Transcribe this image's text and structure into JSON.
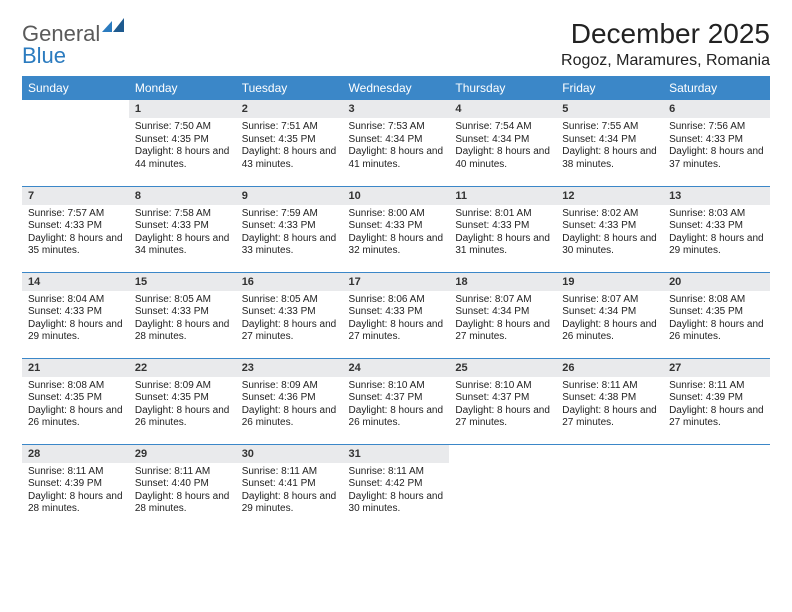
{
  "logo": {
    "part1": "General",
    "part2": "Blue"
  },
  "title": "December 2025",
  "location": "Rogoz, Maramures, Romania",
  "colors": {
    "header_bg": "#3b87c8",
    "header_text": "#ffffff",
    "daynum_bg": "#e9eaec",
    "row_border": "#3b87c8",
    "logo_gray": "#5a5a5a",
    "logo_blue": "#2b7bbf"
  },
  "fonts": {
    "title_size": 28,
    "location_size": 16,
    "dayhead_size": 12,
    "daynum_size": 11,
    "body_size": 10
  },
  "dayHeaders": [
    "Sunday",
    "Monday",
    "Tuesday",
    "Wednesday",
    "Thursday",
    "Friday",
    "Saturday"
  ],
  "weeks": [
    [
      null,
      {
        "n": "1",
        "sr": "7:50 AM",
        "ss": "4:35 PM",
        "dl": "8 hours and 44 minutes."
      },
      {
        "n": "2",
        "sr": "7:51 AM",
        "ss": "4:35 PM",
        "dl": "8 hours and 43 minutes."
      },
      {
        "n": "3",
        "sr": "7:53 AM",
        "ss": "4:34 PM",
        "dl": "8 hours and 41 minutes."
      },
      {
        "n": "4",
        "sr": "7:54 AM",
        "ss": "4:34 PM",
        "dl": "8 hours and 40 minutes."
      },
      {
        "n": "5",
        "sr": "7:55 AM",
        "ss": "4:34 PM",
        "dl": "8 hours and 38 minutes."
      },
      {
        "n": "6",
        "sr": "7:56 AM",
        "ss": "4:33 PM",
        "dl": "8 hours and 37 minutes."
      }
    ],
    [
      {
        "n": "7",
        "sr": "7:57 AM",
        "ss": "4:33 PM",
        "dl": "8 hours and 35 minutes."
      },
      {
        "n": "8",
        "sr": "7:58 AM",
        "ss": "4:33 PM",
        "dl": "8 hours and 34 minutes."
      },
      {
        "n": "9",
        "sr": "7:59 AM",
        "ss": "4:33 PM",
        "dl": "8 hours and 33 minutes."
      },
      {
        "n": "10",
        "sr": "8:00 AM",
        "ss": "4:33 PM",
        "dl": "8 hours and 32 minutes."
      },
      {
        "n": "11",
        "sr": "8:01 AM",
        "ss": "4:33 PM",
        "dl": "8 hours and 31 minutes."
      },
      {
        "n": "12",
        "sr": "8:02 AM",
        "ss": "4:33 PM",
        "dl": "8 hours and 30 minutes."
      },
      {
        "n": "13",
        "sr": "8:03 AM",
        "ss": "4:33 PM",
        "dl": "8 hours and 29 minutes."
      }
    ],
    [
      {
        "n": "14",
        "sr": "8:04 AM",
        "ss": "4:33 PM",
        "dl": "8 hours and 29 minutes."
      },
      {
        "n": "15",
        "sr": "8:05 AM",
        "ss": "4:33 PM",
        "dl": "8 hours and 28 minutes."
      },
      {
        "n": "16",
        "sr": "8:05 AM",
        "ss": "4:33 PM",
        "dl": "8 hours and 27 minutes."
      },
      {
        "n": "17",
        "sr": "8:06 AM",
        "ss": "4:33 PM",
        "dl": "8 hours and 27 minutes."
      },
      {
        "n": "18",
        "sr": "8:07 AM",
        "ss": "4:34 PM",
        "dl": "8 hours and 27 minutes."
      },
      {
        "n": "19",
        "sr": "8:07 AM",
        "ss": "4:34 PM",
        "dl": "8 hours and 26 minutes."
      },
      {
        "n": "20",
        "sr": "8:08 AM",
        "ss": "4:35 PM",
        "dl": "8 hours and 26 minutes."
      }
    ],
    [
      {
        "n": "21",
        "sr": "8:08 AM",
        "ss": "4:35 PM",
        "dl": "8 hours and 26 minutes."
      },
      {
        "n": "22",
        "sr": "8:09 AM",
        "ss": "4:35 PM",
        "dl": "8 hours and 26 minutes."
      },
      {
        "n": "23",
        "sr": "8:09 AM",
        "ss": "4:36 PM",
        "dl": "8 hours and 26 minutes."
      },
      {
        "n": "24",
        "sr": "8:10 AM",
        "ss": "4:37 PM",
        "dl": "8 hours and 26 minutes."
      },
      {
        "n": "25",
        "sr": "8:10 AM",
        "ss": "4:37 PM",
        "dl": "8 hours and 27 minutes."
      },
      {
        "n": "26",
        "sr": "8:11 AM",
        "ss": "4:38 PM",
        "dl": "8 hours and 27 minutes."
      },
      {
        "n": "27",
        "sr": "8:11 AM",
        "ss": "4:39 PM",
        "dl": "8 hours and 27 minutes."
      }
    ],
    [
      {
        "n": "28",
        "sr": "8:11 AM",
        "ss": "4:39 PM",
        "dl": "8 hours and 28 minutes."
      },
      {
        "n": "29",
        "sr": "8:11 AM",
        "ss": "4:40 PM",
        "dl": "8 hours and 28 minutes."
      },
      {
        "n": "30",
        "sr": "8:11 AM",
        "ss": "4:41 PM",
        "dl": "8 hours and 29 minutes."
      },
      {
        "n": "31",
        "sr": "8:11 AM",
        "ss": "4:42 PM",
        "dl": "8 hours and 30 minutes."
      },
      null,
      null,
      null
    ]
  ],
  "labels": {
    "sunrise": "Sunrise:",
    "sunset": "Sunset:",
    "daylight": "Daylight:"
  }
}
